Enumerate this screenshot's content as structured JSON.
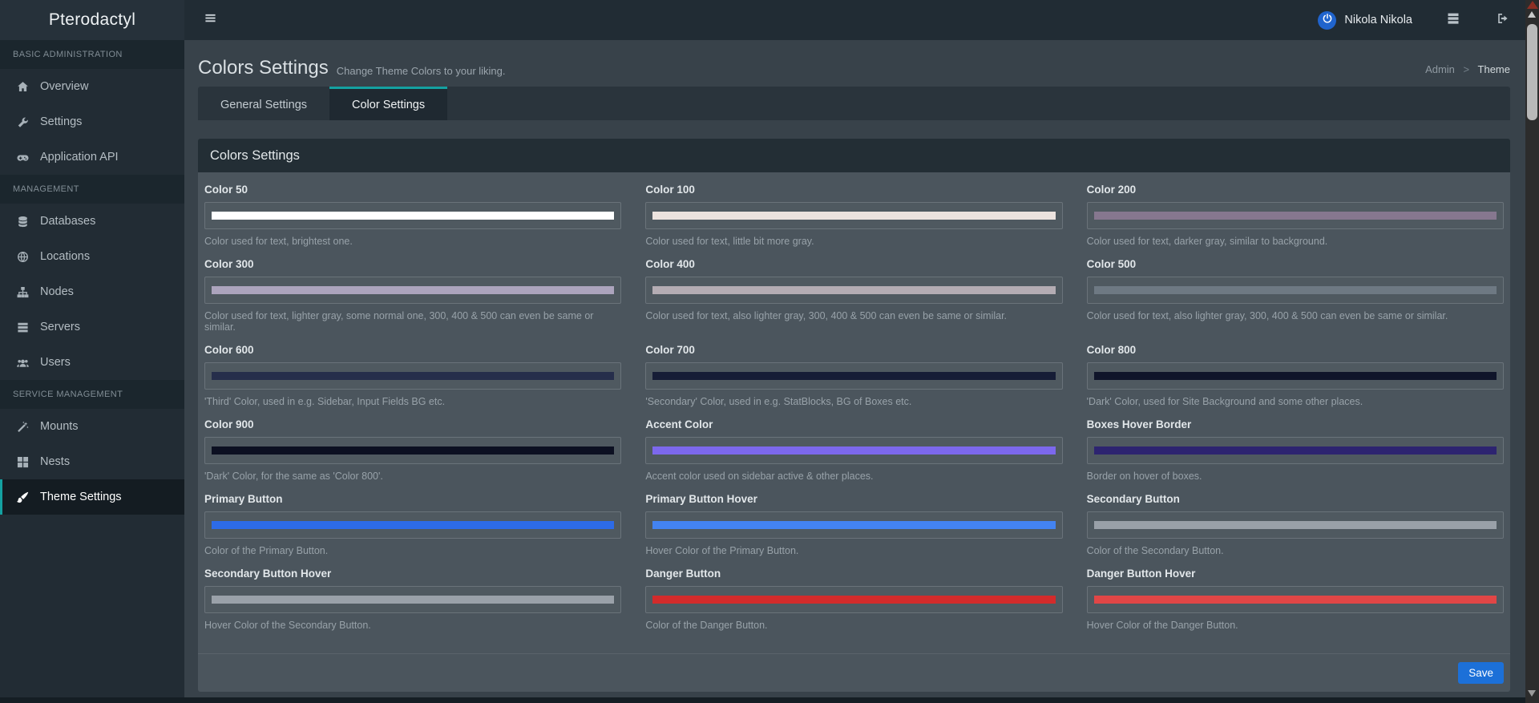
{
  "topbar": {
    "brand": "Pterodactyl",
    "user_name": "Nikola Nikola"
  },
  "sidebar": {
    "sections": [
      {
        "label": "BASIC ADMINISTRATION",
        "items": [
          {
            "label": "Overview",
            "icon": "home-icon",
            "active": false
          },
          {
            "label": "Settings",
            "icon": "wrench-icon",
            "active": false
          },
          {
            "label": "Application API",
            "icon": "gamepad-icon",
            "active": false
          }
        ]
      },
      {
        "label": "MANAGEMENT",
        "items": [
          {
            "label": "Databases",
            "icon": "database-icon",
            "active": false
          },
          {
            "label": "Locations",
            "icon": "globe-icon",
            "active": false
          },
          {
            "label": "Nodes",
            "icon": "sitemap-icon",
            "active": false
          },
          {
            "label": "Servers",
            "icon": "server-icon",
            "active": false
          },
          {
            "label": "Users",
            "icon": "users-icon",
            "active": false
          }
        ]
      },
      {
        "label": "SERVICE MANAGEMENT",
        "items": [
          {
            "label": "Mounts",
            "icon": "magic-wand-icon",
            "active": false
          },
          {
            "label": "Nests",
            "icon": "grid-icon",
            "active": false
          },
          {
            "label": "Theme Settings",
            "icon": "paint-brush-icon",
            "active": true
          }
        ]
      }
    ]
  },
  "page": {
    "title": "Colors Settings",
    "subtitle": "Change Theme Colors to your liking.",
    "breadcrumb": {
      "parent": "Admin",
      "separator": ">",
      "current": "Theme"
    }
  },
  "tabs": [
    {
      "label": "General Settings",
      "active": false
    },
    {
      "label": "Color Settings",
      "active": true
    }
  ],
  "panel": {
    "title": "Colors Settings",
    "save_label": "Save",
    "fields": [
      {
        "label": "Color 50",
        "value": "#ffffff",
        "description": "Color used for text, brightest one."
      },
      {
        "label": "Color 100",
        "value": "#ece3df",
        "description": "Color used for text, little bit more gray."
      },
      {
        "label": "Color 200",
        "value": "#86778f",
        "description": "Color used for text, darker gray, similar to background."
      },
      {
        "label": "Color 300",
        "value": "#aca4bd",
        "description": "Color used for text, lighter gray, some normal one, 300, 400 & 500 can even be same or similar."
      },
      {
        "label": "Color 400",
        "value": "#b4acb3",
        "description": "Color used for text, also lighter gray, 300, 400 & 500 can even be same or similar."
      },
      {
        "label": "Color 500",
        "value": "#6e7983",
        "description": "Color used for text, also lighter gray, 300, 400 & 500 can even be same or similar."
      },
      {
        "label": "Color 600",
        "value": "#262e4b",
        "description": "'Third' Color, used in e.g. Sidebar, Input Fields BG etc."
      },
      {
        "label": "Color 700",
        "value": "#161d36",
        "description": "'Secondary' Color, used in e.g. StatBlocks, BG of Boxes etc."
      },
      {
        "label": "Color 800",
        "value": "#10152a",
        "description": "'Dark' Color, used for Site Background and some other places."
      },
      {
        "label": "Color 900",
        "value": "#0c1022",
        "description": "'Dark' Color, for the same as 'Color 800'."
      },
      {
        "label": "Accent Color",
        "value": "#7c68ed",
        "description": "Accent color used on sidebar active & other places."
      },
      {
        "label": "Boxes Hover Border",
        "value": "#2d2470",
        "description": "Border on hover of boxes."
      },
      {
        "label": "Primary Button",
        "value": "#2d6be7",
        "description": "Color of the Primary Button."
      },
      {
        "label": "Primary Button Hover",
        "value": "#4383f1",
        "description": "Hover Color of the Primary Button."
      },
      {
        "label": "Secondary Button",
        "value": "#99a0a8",
        "description": "Color of the Secondary Button."
      },
      {
        "label": "Secondary Button Hover",
        "value": "#9aa1a9",
        "description": "Hover Color of the Secondary Button."
      },
      {
        "label": "Danger Button",
        "value": "#d32b2b",
        "description": "Color of the Danger Button."
      },
      {
        "label": "Danger Button Hover",
        "value": "#e14646",
        "description": "Hover Color of the Danger Button."
      }
    ]
  },
  "theme": {
    "accent_teal": "#14a1a1",
    "save_button_blue": "#1c70d8",
    "avatar_blue": "#2064cd"
  }
}
